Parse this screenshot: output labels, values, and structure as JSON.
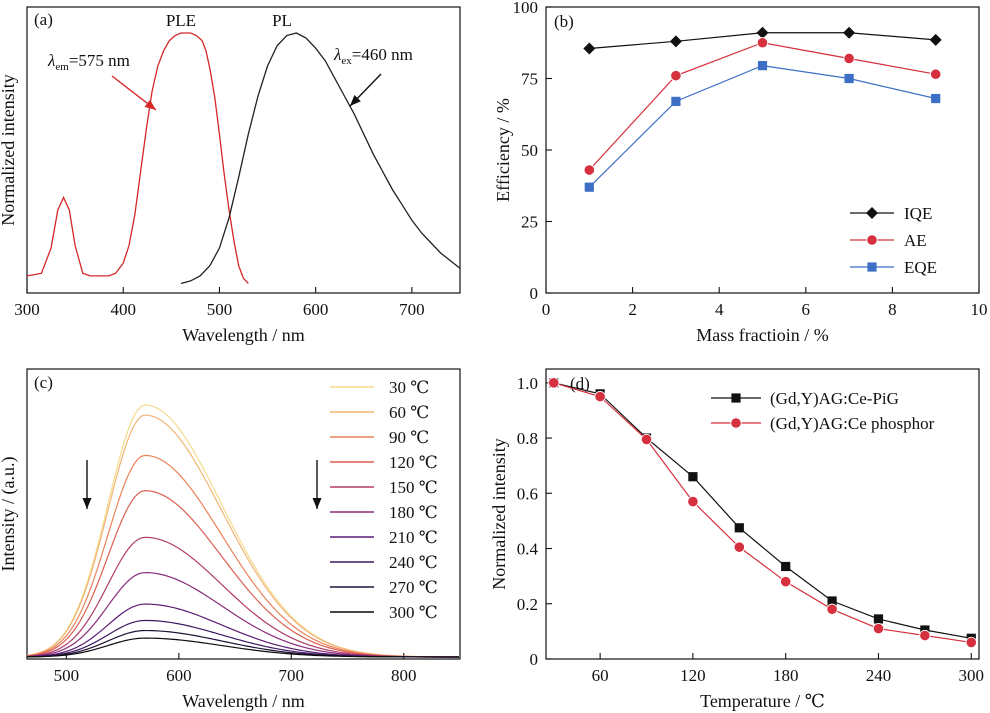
{
  "chart_data": [
    {
      "panel": "(a)",
      "type": "line",
      "xlabel": "Wavelength / nm",
      "ylabel": "Normalized intensity",
      "xlim": [
        300,
        750
      ],
      "xticks": [
        300,
        400,
        500,
        600,
        700
      ],
      "yticks": [],
      "colors": {
        "PLE": "#d62728",
        "PL": "#222222"
      },
      "series": [
        {
          "name": "PLE",
          "x": [
            300,
            315,
            325,
            332,
            338,
            344,
            350,
            358,
            366,
            375,
            385,
            392,
            400,
            406,
            412,
            418,
            424,
            430,
            436,
            442,
            448,
            454,
            460,
            464,
            470,
            476,
            482,
            486,
            490,
            495,
            500,
            505,
            510,
            515,
            520,
            525,
            530
          ],
          "y": [
            0.04,
            0.05,
            0.15,
            0.3,
            0.35,
            0.3,
            0.16,
            0.05,
            0.04,
            0.04,
            0.04,
            0.05,
            0.09,
            0.16,
            0.28,
            0.45,
            0.62,
            0.77,
            0.87,
            0.93,
            0.97,
            0.99,
            1.0,
            1.0,
            1.0,
            0.99,
            0.97,
            0.93,
            0.86,
            0.75,
            0.6,
            0.44,
            0.3,
            0.18,
            0.08,
            0.03,
            0.01
          ]
        },
        {
          "name": "PL",
          "x": [
            460,
            470,
            480,
            490,
            500,
            510,
            520,
            530,
            540,
            550,
            560,
            570,
            580,
            590,
            600,
            610,
            620,
            630,
            640,
            650,
            660,
            670,
            680,
            690,
            700,
            710,
            720,
            730,
            740,
            750
          ],
          "y": [
            0.01,
            0.02,
            0.04,
            0.08,
            0.15,
            0.27,
            0.43,
            0.6,
            0.75,
            0.87,
            0.95,
            0.99,
            1.0,
            0.98,
            0.94,
            0.89,
            0.82,
            0.75,
            0.68,
            0.6,
            0.52,
            0.45,
            0.38,
            0.32,
            0.26,
            0.21,
            0.17,
            0.13,
            0.1,
            0.07
          ]
        }
      ],
      "annotations": [
        {
          "series": "PLE",
          "text": "PLE"
        },
        {
          "series": "PL",
          "text": "PL"
        },
        {
          "sym": "λ",
          "sub": "em",
          "rest": "=575 nm"
        },
        {
          "sym": "λ",
          "sub": "ex",
          "rest": "=460 nm"
        }
      ]
    },
    {
      "panel": "(b)",
      "type": "line",
      "xlabel": "Mass fractioin / %",
      "ylabel": "Efficiency / %",
      "xlim": [
        0,
        10
      ],
      "ylim": [
        0,
        100
      ],
      "xticks": [
        0,
        2,
        4,
        6,
        8,
        10
      ],
      "yticks": [
        0,
        25,
        50,
        75,
        100
      ],
      "legend_position": "bottom-right",
      "x": [
        1,
        3,
        5,
        7,
        9
      ],
      "series": [
        {
          "name": "IQE",
          "values": [
            85.5,
            88,
            91,
            91,
            88.5
          ],
          "color": "#111111",
          "marker": "diamond"
        },
        {
          "name": "AE",
          "values": [
            43,
            76,
            87.5,
            82,
            76.5
          ],
          "color": "#d62f3e",
          "marker": "circle"
        },
        {
          "name": "EQE",
          "values": [
            37,
            67,
            79.5,
            75,
            68
          ],
          "color": "#3d6fc6",
          "marker": "square"
        }
      ]
    },
    {
      "panel": "(c)",
      "type": "line",
      "xlabel": "Wavelength / nm",
      "ylabel": "Intensity / (a.u.)",
      "xlim": [
        465,
        850
      ],
      "ylim": [
        0,
        1.08
      ],
      "xticks": [
        500,
        600,
        700,
        800
      ],
      "yticks": [],
      "peak_nm": 570,
      "legend_position": "top-right",
      "series": [
        {
          "name": "30 ℃",
          "peak": 1.0,
          "color": "#f3dc8d"
        },
        {
          "name": "60 ℃",
          "peak": 0.96,
          "color": "#f1b477"
        },
        {
          "name": "90 ℃",
          "peak": 0.8,
          "color": "#ea8358"
        },
        {
          "name": "120 ℃",
          "peak": 0.66,
          "color": "#dc5f52"
        },
        {
          "name": "150 ℃",
          "peak": 0.475,
          "color": "#b03a6a"
        },
        {
          "name": "180 ℃",
          "peak": 0.335,
          "color": "#8a2b7c"
        },
        {
          "name": "210 ℃",
          "peak": 0.21,
          "color": "#5c1d73"
        },
        {
          "name": "240 ℃",
          "peak": 0.145,
          "color": "#3b1a63"
        },
        {
          "name": "270 ℃",
          "peak": 0.105,
          "color": "#1f1237"
        },
        {
          "name": "300 ℃",
          "peak": 0.075,
          "color": "#0c0c0c"
        }
      ]
    },
    {
      "panel": "(d)",
      "type": "line",
      "xlabel": "Temperature / ℃",
      "ylabel": "Normalized intensity",
      "xlim": [
        25,
        305
      ],
      "ylim": [
        0,
        1.05
      ],
      "xticks": [
        60,
        120,
        180,
        240,
        300
      ],
      "yticks": [
        0,
        0.2,
        0.4,
        0.6,
        0.8,
        1.0
      ],
      "ytick_labels": [
        "0",
        "0.2",
        "0.4",
        "0.6",
        "0.8",
        "1.0"
      ],
      "legend_position": "top-right",
      "x": [
        30,
        60,
        90,
        120,
        150,
        180,
        210,
        240,
        270,
        300
      ],
      "series": [
        {
          "name": "(Gd,Y)AG:Ce-PiG",
          "values": [
            1.0,
            0.96,
            0.8,
            0.66,
            0.475,
            0.335,
            0.21,
            0.145,
            0.105,
            0.075
          ],
          "color": "#111111",
          "marker": "square"
        },
        {
          "name": "(Gd,Y)AG:Ce phosphor",
          "values": [
            1.0,
            0.95,
            0.795,
            0.57,
            0.405,
            0.28,
            0.18,
            0.11,
            0.085,
            0.06
          ],
          "color": "#d62f3e",
          "marker": "circle"
        }
      ]
    }
  ]
}
